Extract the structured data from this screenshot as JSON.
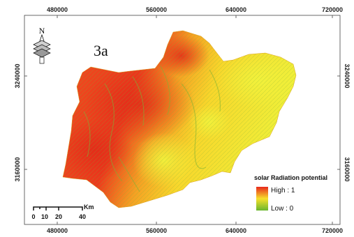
{
  "figure_label": "3a",
  "x_ticks": [
    "480000",
    "560000",
    "640000",
    "720000"
  ],
  "y_ticks": [
    "3240000",
    "3160000"
  ],
  "north_label": "N",
  "legend": {
    "title": "solar Radiation potential",
    "high": "High : 1",
    "low": "Low : 0",
    "colors": {
      "high": "#e8281c",
      "mid": "#f7e02a",
      "low": "#6ab62e"
    }
  },
  "scale_bar": {
    "unit": "Km",
    "labels": [
      "0",
      "10",
      "20",
      "40"
    ]
  },
  "map_colors": {
    "hot": "#e8301e",
    "warm": "#f59a22",
    "mild": "#f7d02a",
    "cool": "#eef03a",
    "vegetation": "#8fbf3a"
  }
}
